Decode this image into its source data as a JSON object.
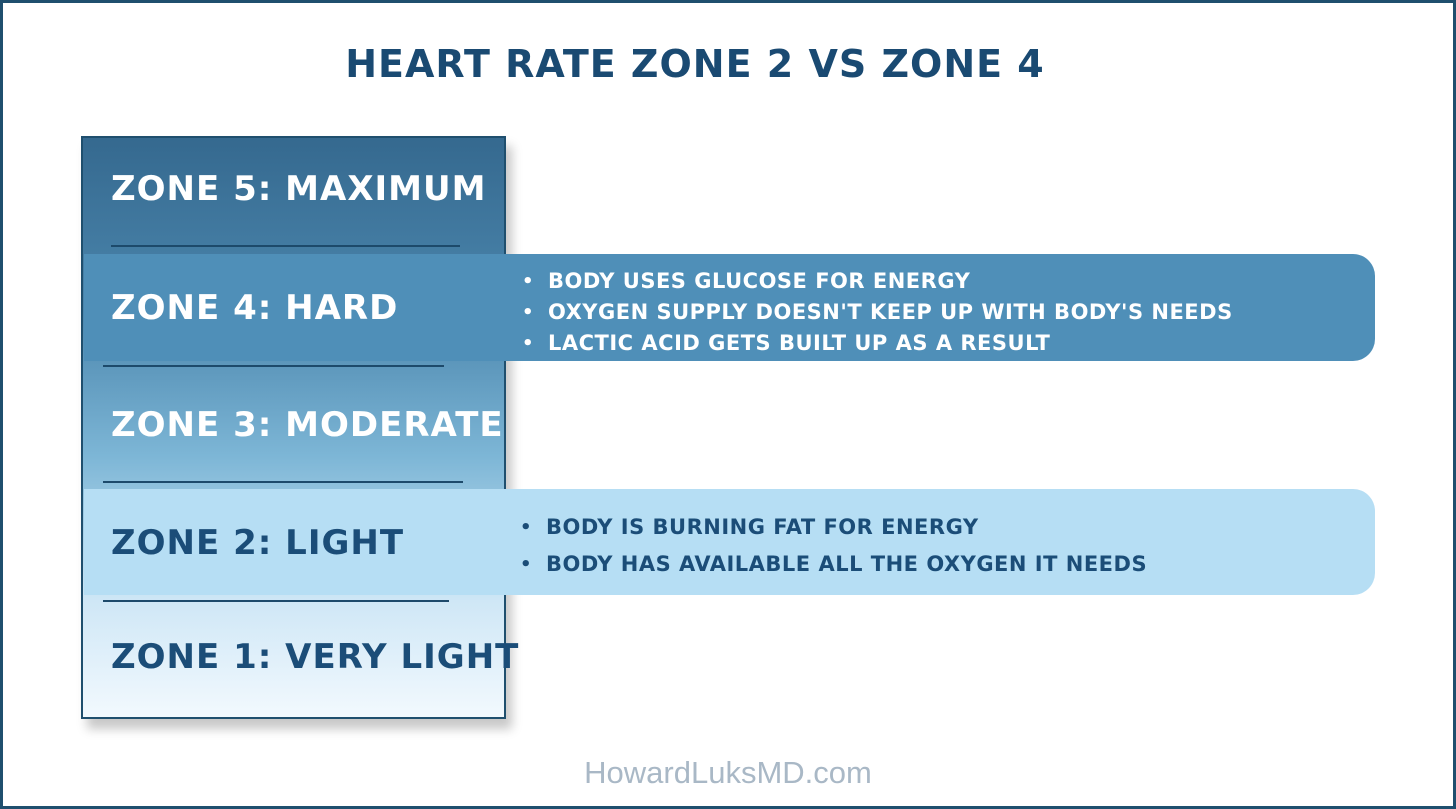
{
  "title": "HEART RATE ZONE 2 VS ZONE 4",
  "zones": [
    {
      "label": "ZONE 5: MAXIMUM"
    },
    {
      "label": "ZONE 4: HARD"
    },
    {
      "label": "ZONE 3: MODERATE"
    },
    {
      "label": "ZONE 2: LIGHT"
    },
    {
      "label": "ZONE 1: VERY LIGHT"
    }
  ],
  "zone4_bullets": [
    "BODY USES GLUCOSE FOR ENERGY",
    "OXYGEN SUPPLY DOESN'T KEEP UP WITH BODY'S NEEDS",
    "LACTIC ACID GETS BUILT UP AS A RESULT"
  ],
  "zone2_bullets": [
    "BODY IS BURNING FAT FOR ENERGY",
    "BODY HAS AVAILABLE ALL THE OXYGEN IT NEEDS"
  ],
  "watermark": "HowardLuksMD.com",
  "colors": {
    "frame": "#1f4f6e",
    "title": "#1a4a72",
    "zone4_band": "#4f8fb8",
    "zone2_band": "#b6def4",
    "dark_text": "#1b4d78"
  }
}
